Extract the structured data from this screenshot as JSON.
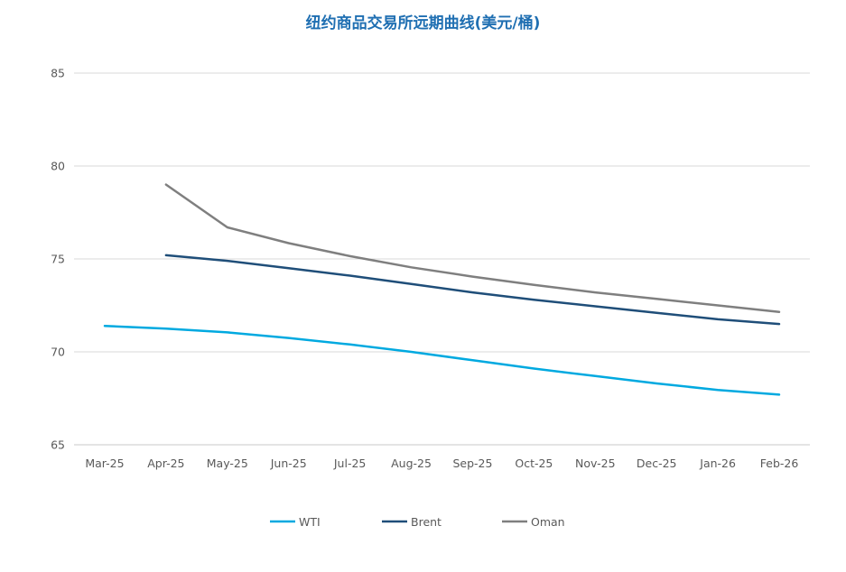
{
  "chart_data": {
    "type": "line",
    "title": "纽约商品交易所远期曲线(美元/桶)",
    "xlabel": "",
    "ylabel": "",
    "categories": [
      "Mar-25",
      "Apr-25",
      "May-25",
      "Jun-25",
      "Jul-25",
      "Aug-25",
      "Sep-25",
      "Oct-25",
      "Nov-25",
      "Dec-25",
      "Jan-26",
      "Feb-26"
    ],
    "ylim": [
      65,
      85
    ],
    "yticks": [
      65,
      70,
      75,
      80,
      85
    ],
    "grid": "horizontal",
    "legend_position": "bottom",
    "series": [
      {
        "name": "WTI",
        "color": "#00a9e0",
        "values": [
          71.4,
          71.25,
          71.05,
          70.75,
          70.4,
          70.0,
          69.55,
          69.1,
          68.7,
          68.3,
          67.95,
          67.7
        ]
      },
      {
        "name": "Brent",
        "color": "#1f4e79",
        "values": [
          null,
          75.2,
          74.9,
          74.5,
          74.1,
          73.65,
          73.2,
          72.8,
          72.45,
          72.1,
          71.75,
          71.5
        ]
      },
      {
        "name": "Oman",
        "color": "#7f7f7f",
        "values": [
          null,
          79.0,
          76.7,
          75.85,
          75.15,
          74.55,
          74.05,
          73.6,
          73.2,
          72.85,
          72.5,
          72.15
        ]
      }
    ]
  }
}
